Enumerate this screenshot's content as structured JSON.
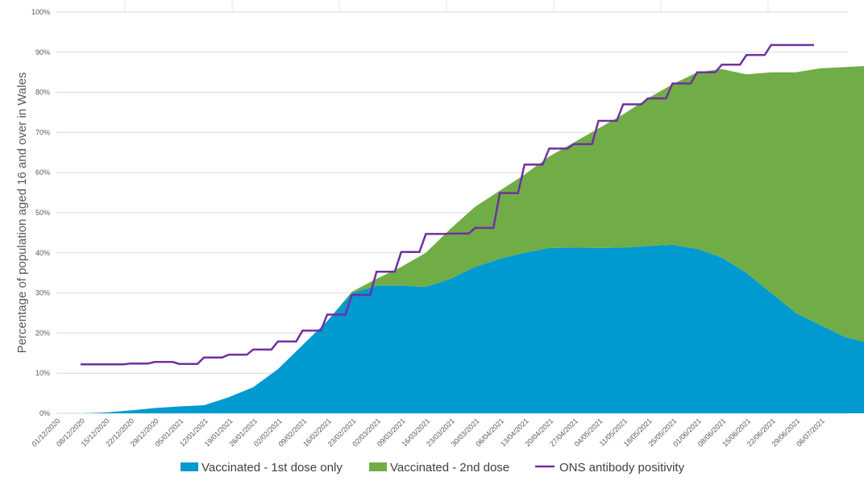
{
  "chart_data": {
    "type": "area",
    "title": "",
    "xlabel": "",
    "ylabel": "Percentage of population aged 16 and over in Wales",
    "ylim": [
      0,
      100
    ],
    "yticks": [
      0,
      10,
      20,
      30,
      40,
      50,
      60,
      70,
      80,
      90,
      100
    ],
    "ytick_labels": [
      "0%",
      "10%",
      "20%",
      "30%",
      "40%",
      "50%",
      "60%",
      "70%",
      "80%",
      "90%",
      "100%"
    ],
    "week_labels": [
      "01/12/2020",
      "08/12/2020",
      "15/12/2020",
      "22/12/2020",
      "29/12/2020",
      "05/01/2021",
      "12/01/2021",
      "19/01/2021",
      "26/01/2021",
      "02/02/2021",
      "09/02/2021",
      "16/02/2021",
      "23/02/2021",
      "02/03/2021",
      "09/03/2021",
      "16/03/2021",
      "23/03/2021",
      "30/03/2021",
      "06/04/2021",
      "13/04/2021",
      "20/04/2021",
      "27/04/2021",
      "04/05/2021",
      "11/05/2021",
      "18/05/2021",
      "25/05/2021",
      "01/06/2021",
      "08/06/2021",
      "15/06/2021",
      "22/06/2021",
      "29/06/2021",
      "06/07/2021"
    ],
    "grid": true,
    "legend_position": "bottom",
    "series": [
      {
        "name": "Vaccinated - 1st dose only",
        "color": "#0099d0",
        "kind": "stacked-area",
        "x": [
          0,
          1,
          2,
          3,
          4,
          5,
          6,
          7,
          8,
          9,
          10,
          11,
          12,
          13,
          14,
          15,
          16,
          17,
          18,
          19,
          20,
          21,
          22,
          23,
          24,
          25,
          26,
          27,
          28,
          29,
          30,
          31,
          32.3
        ],
        "values": [
          0,
          0.2,
          0.7,
          1.3,
          1.7,
          2.0,
          4.0,
          6.5,
          11,
          17,
          23,
          30,
          31.8,
          31.8,
          31.5,
          33.5,
          36.5,
          38.5,
          40,
          41.2,
          41.3,
          41.2,
          41.3,
          41.7,
          42,
          41,
          38.8,
          35,
          30,
          25,
          22,
          19,
          17
        ]
      },
      {
        "name": "Vaccinated - 2nd dose",
        "color": "#70ad47",
        "kind": "stacked-area",
        "x": [
          0,
          1,
          2,
          3,
          4,
          5,
          6,
          7,
          8,
          9,
          10,
          11,
          12,
          13,
          14,
          15,
          16,
          17,
          18,
          19,
          20,
          21,
          22,
          23,
          24,
          25,
          26,
          27,
          28,
          29,
          30,
          31,
          32.3
        ],
        "values": [
          0,
          0,
          0,
          0,
          0,
          0,
          0,
          0,
          0,
          0,
          0,
          0.3,
          1.7,
          4.7,
          8.5,
          12.5,
          15,
          17,
          19.5,
          22.8,
          26.2,
          29.8,
          33.2,
          36.8,
          40,
          44,
          47,
          49.5,
          55,
          60,
          64,
          67.3,
          69.7
        ]
      },
      {
        "name": "ONS antibody positivity",
        "color": "#7030a0",
        "kind": "step-line",
        "x": [
          0,
          1,
          2,
          3,
          4,
          5,
          6,
          7,
          8,
          9,
          10,
          11,
          12,
          13,
          14,
          15,
          16,
          17,
          18,
          19,
          20,
          21,
          22,
          23,
          24,
          25,
          26,
          27,
          28,
          29
        ],
        "values": [
          12.2,
          12.2,
          12.4,
          12.8,
          12.3,
          13.9,
          14.6,
          15.9,
          17.9,
          20.6,
          24.6,
          29.5,
          35.3,
          40.2,
          44.7,
          44.8,
          46.2,
          54.9,
          62,
          66,
          67.1,
          72.9,
          77,
          78.5,
          82.2,
          85,
          86.9,
          89.3,
          91.8,
          91.8
        ]
      }
    ]
  }
}
